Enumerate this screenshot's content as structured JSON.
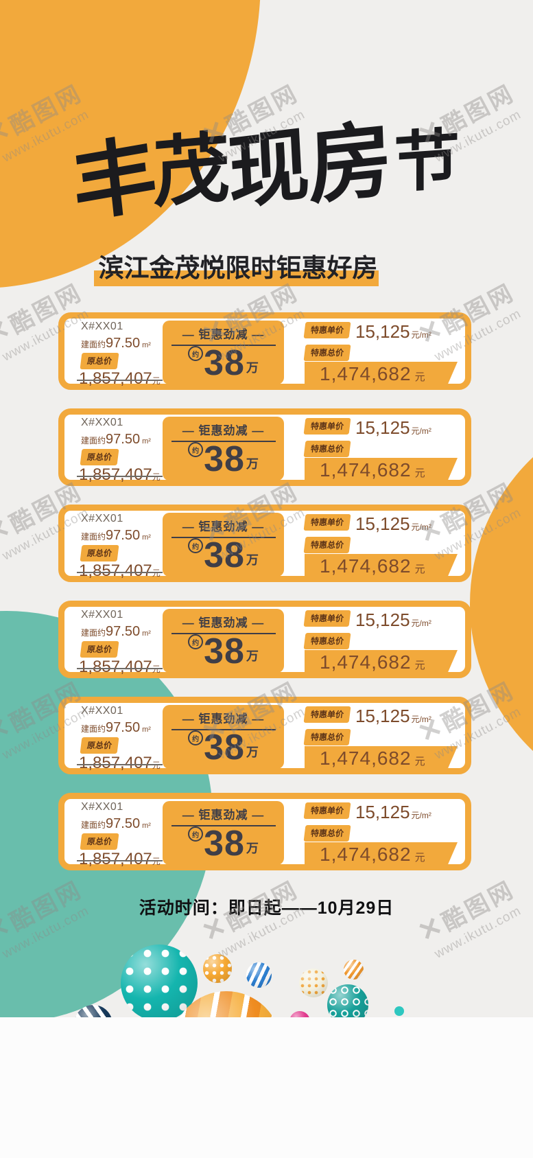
{
  "colors": {
    "accent_yellow": "#F2A93C",
    "teal": "#69BEAC",
    "text_brown": "#7D4B2B",
    "text_charcoal": "#3F3E47",
    "bg_gray": "#F0EFED"
  },
  "watermark": {
    "logo": "✕",
    "brand": "酷图网",
    "url": "www.ikutu.com"
  },
  "title": {
    "chars": [
      "丰",
      "茂",
      "现",
      "房",
      "节"
    ]
  },
  "subtitle": {
    "text": "滨江金茂悦限时钜惠好房"
  },
  "cards": [
    {
      "unit": "X#XX01",
      "area_prefix": "建面约",
      "area_value": "97.50",
      "area_unit": "m²",
      "orig_label": "原总价",
      "orig_price": "1,857,407",
      "orig_unit": "元",
      "deal_header": "— 钜惠劲减 —",
      "approx": "约",
      "deal_value": "38",
      "deal_unit": "万",
      "unit_price_label": "特惠单价",
      "unit_price": "15,125",
      "unit_price_unit": "元/m²",
      "total_label": "特惠总价",
      "total_price": "1,474,682",
      "total_unit": "元"
    },
    {
      "unit": "X#XX01",
      "area_prefix": "建面约",
      "area_value": "97.50",
      "area_unit": "m²",
      "orig_label": "原总价",
      "orig_price": "1,857,407",
      "orig_unit": "元",
      "deal_header": "— 钜惠劲减 —",
      "approx": "约",
      "deal_value": "38",
      "deal_unit": "万",
      "unit_price_label": "特惠单价",
      "unit_price": "15,125",
      "unit_price_unit": "元/m²",
      "total_label": "特惠总价",
      "total_price": "1,474,682",
      "total_unit": "元"
    },
    {
      "unit": "X#XX01",
      "area_prefix": "建面约",
      "area_value": "97.50",
      "area_unit": "m²",
      "orig_label": "原总价",
      "orig_price": "1,857,407",
      "orig_unit": "元",
      "deal_header": "— 钜惠劲减 —",
      "approx": "约",
      "deal_value": "38",
      "deal_unit": "万",
      "unit_price_label": "特惠单价",
      "unit_price": "15,125",
      "unit_price_unit": "元/m²",
      "total_label": "特惠总价",
      "total_price": "1,474,682",
      "total_unit": "元"
    },
    {
      "unit": "X#XX01",
      "area_prefix": "建面约",
      "area_value": "97.50",
      "area_unit": "m²",
      "orig_label": "原总价",
      "orig_price": "1,857,407",
      "orig_unit": "元",
      "deal_header": "— 钜惠劲减 —",
      "approx": "约",
      "deal_value": "38",
      "deal_unit": "万",
      "unit_price_label": "特惠单价",
      "unit_price": "15,125",
      "unit_price_unit": "元/m²",
      "total_label": "特惠总价",
      "total_price": "1,474,682",
      "total_unit": "元"
    },
    {
      "unit": "X#XX01",
      "area_prefix": "建面约",
      "area_value": "97.50",
      "area_unit": "m²",
      "orig_label": "原总价",
      "orig_price": "1,857,407",
      "orig_unit": "元",
      "deal_header": "— 钜惠劲减 —",
      "approx": "约",
      "deal_value": "38",
      "deal_unit": "万",
      "unit_price_label": "特惠单价",
      "unit_price": "15,125",
      "unit_price_unit": "元/m²",
      "total_label": "特惠总价",
      "total_price": "1,474,682",
      "total_unit": "元"
    },
    {
      "unit": "X#XX01",
      "area_prefix": "建面约",
      "area_value": "97.50",
      "area_unit": "m²",
      "orig_label": "原总价",
      "orig_price": "1,857,407",
      "orig_unit": "元",
      "deal_header": "— 钜惠劲减 —",
      "approx": "约",
      "deal_value": "38",
      "deal_unit": "万",
      "unit_price_label": "特惠单价",
      "unit_price": "15,125",
      "unit_price_unit": "元/m²",
      "total_label": "特惠总价",
      "total_price": "1,474,682",
      "total_unit": "元"
    }
  ],
  "footer": {
    "activity_time": "活动时间：即日起——10月29日"
  }
}
